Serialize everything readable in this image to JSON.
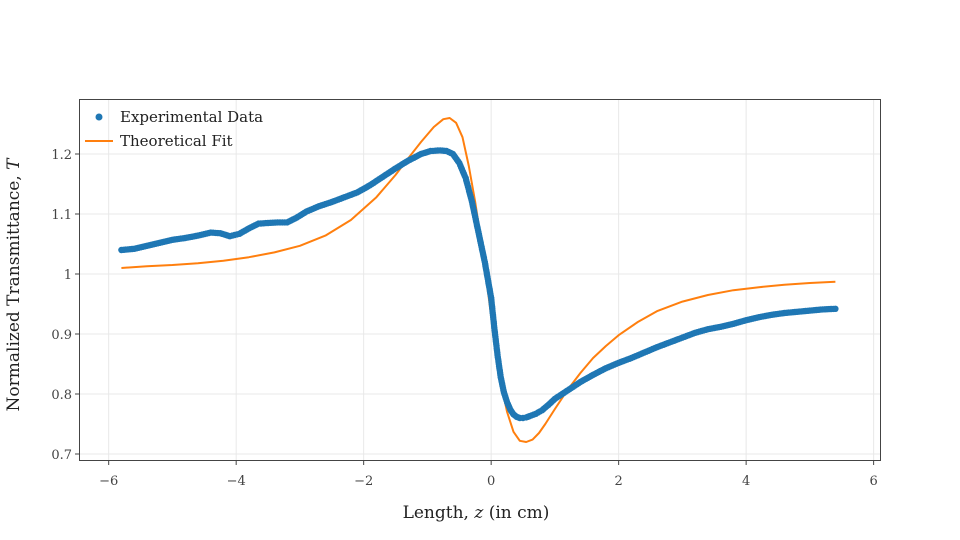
{
  "chart_data": {
    "type": "scatter",
    "xlabel": "Length, z (in cm)",
    "xlabel_parts": {
      "prefix": "Length, ",
      "var": "z",
      "suffix": " (in cm)"
    },
    "ylabel": "Normalized Transmittance, T",
    "ylabel_parts": {
      "prefix": "Normalized Transmittance, ",
      "var": "T"
    },
    "xlim": [
      -6.45,
      6.1
    ],
    "ylim": [
      0.69,
      1.29
    ],
    "xticks": [
      -6,
      -4,
      -2,
      0,
      2,
      4,
      6
    ],
    "xtick_labels": [
      "−6",
      "−4",
      "−2",
      "0",
      "2",
      "4",
      "6"
    ],
    "yticks": [
      0.7,
      0.8,
      0.9,
      1.0,
      1.1,
      1.2
    ],
    "ytick_labels": [
      "0.7",
      "0.8",
      "0.9",
      "1",
      "1.1",
      "1.2"
    ],
    "grid": true,
    "legend_position": "top-left",
    "series": [
      {
        "name": "Experimental Data",
        "mode": "markers",
        "color": "#1f77b4",
        "x": [
          -5.8,
          -5.6,
          -5.4,
          -5.2,
          -5.0,
          -4.8,
          -4.6,
          -4.4,
          -4.25,
          -4.1,
          -3.95,
          -3.8,
          -3.65,
          -3.5,
          -3.35,
          -3.2,
          -3.05,
          -2.9,
          -2.7,
          -2.5,
          -2.3,
          -2.1,
          -1.9,
          -1.7,
          -1.5,
          -1.3,
          -1.1,
          -0.95,
          -0.8,
          -0.7,
          -0.6,
          -0.5,
          -0.4,
          -0.3,
          -0.2,
          -0.1,
          0.0,
          0.05,
          0.1,
          0.15,
          0.2,
          0.25,
          0.3,
          0.35,
          0.4,
          0.45,
          0.5,
          0.55,
          0.6,
          0.7,
          0.8,
          0.9,
          1.0,
          1.2,
          1.4,
          1.6,
          1.8,
          2.0,
          2.2,
          2.4,
          2.6,
          2.8,
          3.0,
          3.2,
          3.4,
          3.6,
          3.8,
          4.0,
          4.2,
          4.4,
          4.6,
          4.8,
          5.0,
          5.2,
          5.4
        ],
        "y": [
          1.04,
          1.042,
          1.047,
          1.052,
          1.057,
          1.06,
          1.064,
          1.069,
          1.068,
          1.063,
          1.067,
          1.076,
          1.084,
          1.085,
          1.086,
          1.086,
          1.094,
          1.104,
          1.113,
          1.12,
          1.128,
          1.136,
          1.148,
          1.162,
          1.176,
          1.189,
          1.2,
          1.205,
          1.206,
          1.205,
          1.2,
          1.185,
          1.16,
          1.12,
          1.07,
          1.02,
          0.96,
          0.91,
          0.865,
          0.828,
          0.803,
          0.786,
          0.774,
          0.766,
          0.762,
          0.76,
          0.76,
          0.761,
          0.763,
          0.767,
          0.773,
          0.782,
          0.792,
          0.806,
          0.82,
          0.832,
          0.843,
          0.852,
          0.86,
          0.869,
          0.878,
          0.886,
          0.894,
          0.902,
          0.908,
          0.912,
          0.917,
          0.923,
          0.928,
          0.932,
          0.935,
          0.937,
          0.939,
          0.941,
          0.942
        ]
      },
      {
        "name": "Theoretical Fit",
        "mode": "lines",
        "color": "#ff7f0e",
        "x": [
          -5.8,
          -5.4,
          -5.0,
          -4.6,
          -4.2,
          -3.8,
          -3.4,
          -3.0,
          -2.6,
          -2.2,
          -1.8,
          -1.5,
          -1.3,
          -1.1,
          -0.9,
          -0.75,
          -0.65,
          -0.55,
          -0.45,
          -0.35,
          -0.25,
          -0.15,
          -0.05,
          0.05,
          0.15,
          0.25,
          0.35,
          0.45,
          0.55,
          0.65,
          0.75,
          0.85,
          1.0,
          1.2,
          1.4,
          1.6,
          1.8,
          2.0,
          2.3,
          2.6,
          3.0,
          3.4,
          3.8,
          4.2,
          4.6,
          5.0,
          5.4
        ],
        "y": [
          1.01,
          1.013,
          1.015,
          1.018,
          1.022,
          1.028,
          1.036,
          1.047,
          1.064,
          1.09,
          1.128,
          1.165,
          1.193,
          1.22,
          1.245,
          1.258,
          1.26,
          1.252,
          1.228,
          1.18,
          1.12,
          1.05,
          0.97,
          0.89,
          0.82,
          0.77,
          0.737,
          0.722,
          0.72,
          0.724,
          0.735,
          0.75,
          0.775,
          0.807,
          0.835,
          0.86,
          0.88,
          0.898,
          0.92,
          0.938,
          0.954,
          0.965,
          0.973,
          0.978,
          0.982,
          0.985,
          0.987
        ]
      }
    ]
  }
}
